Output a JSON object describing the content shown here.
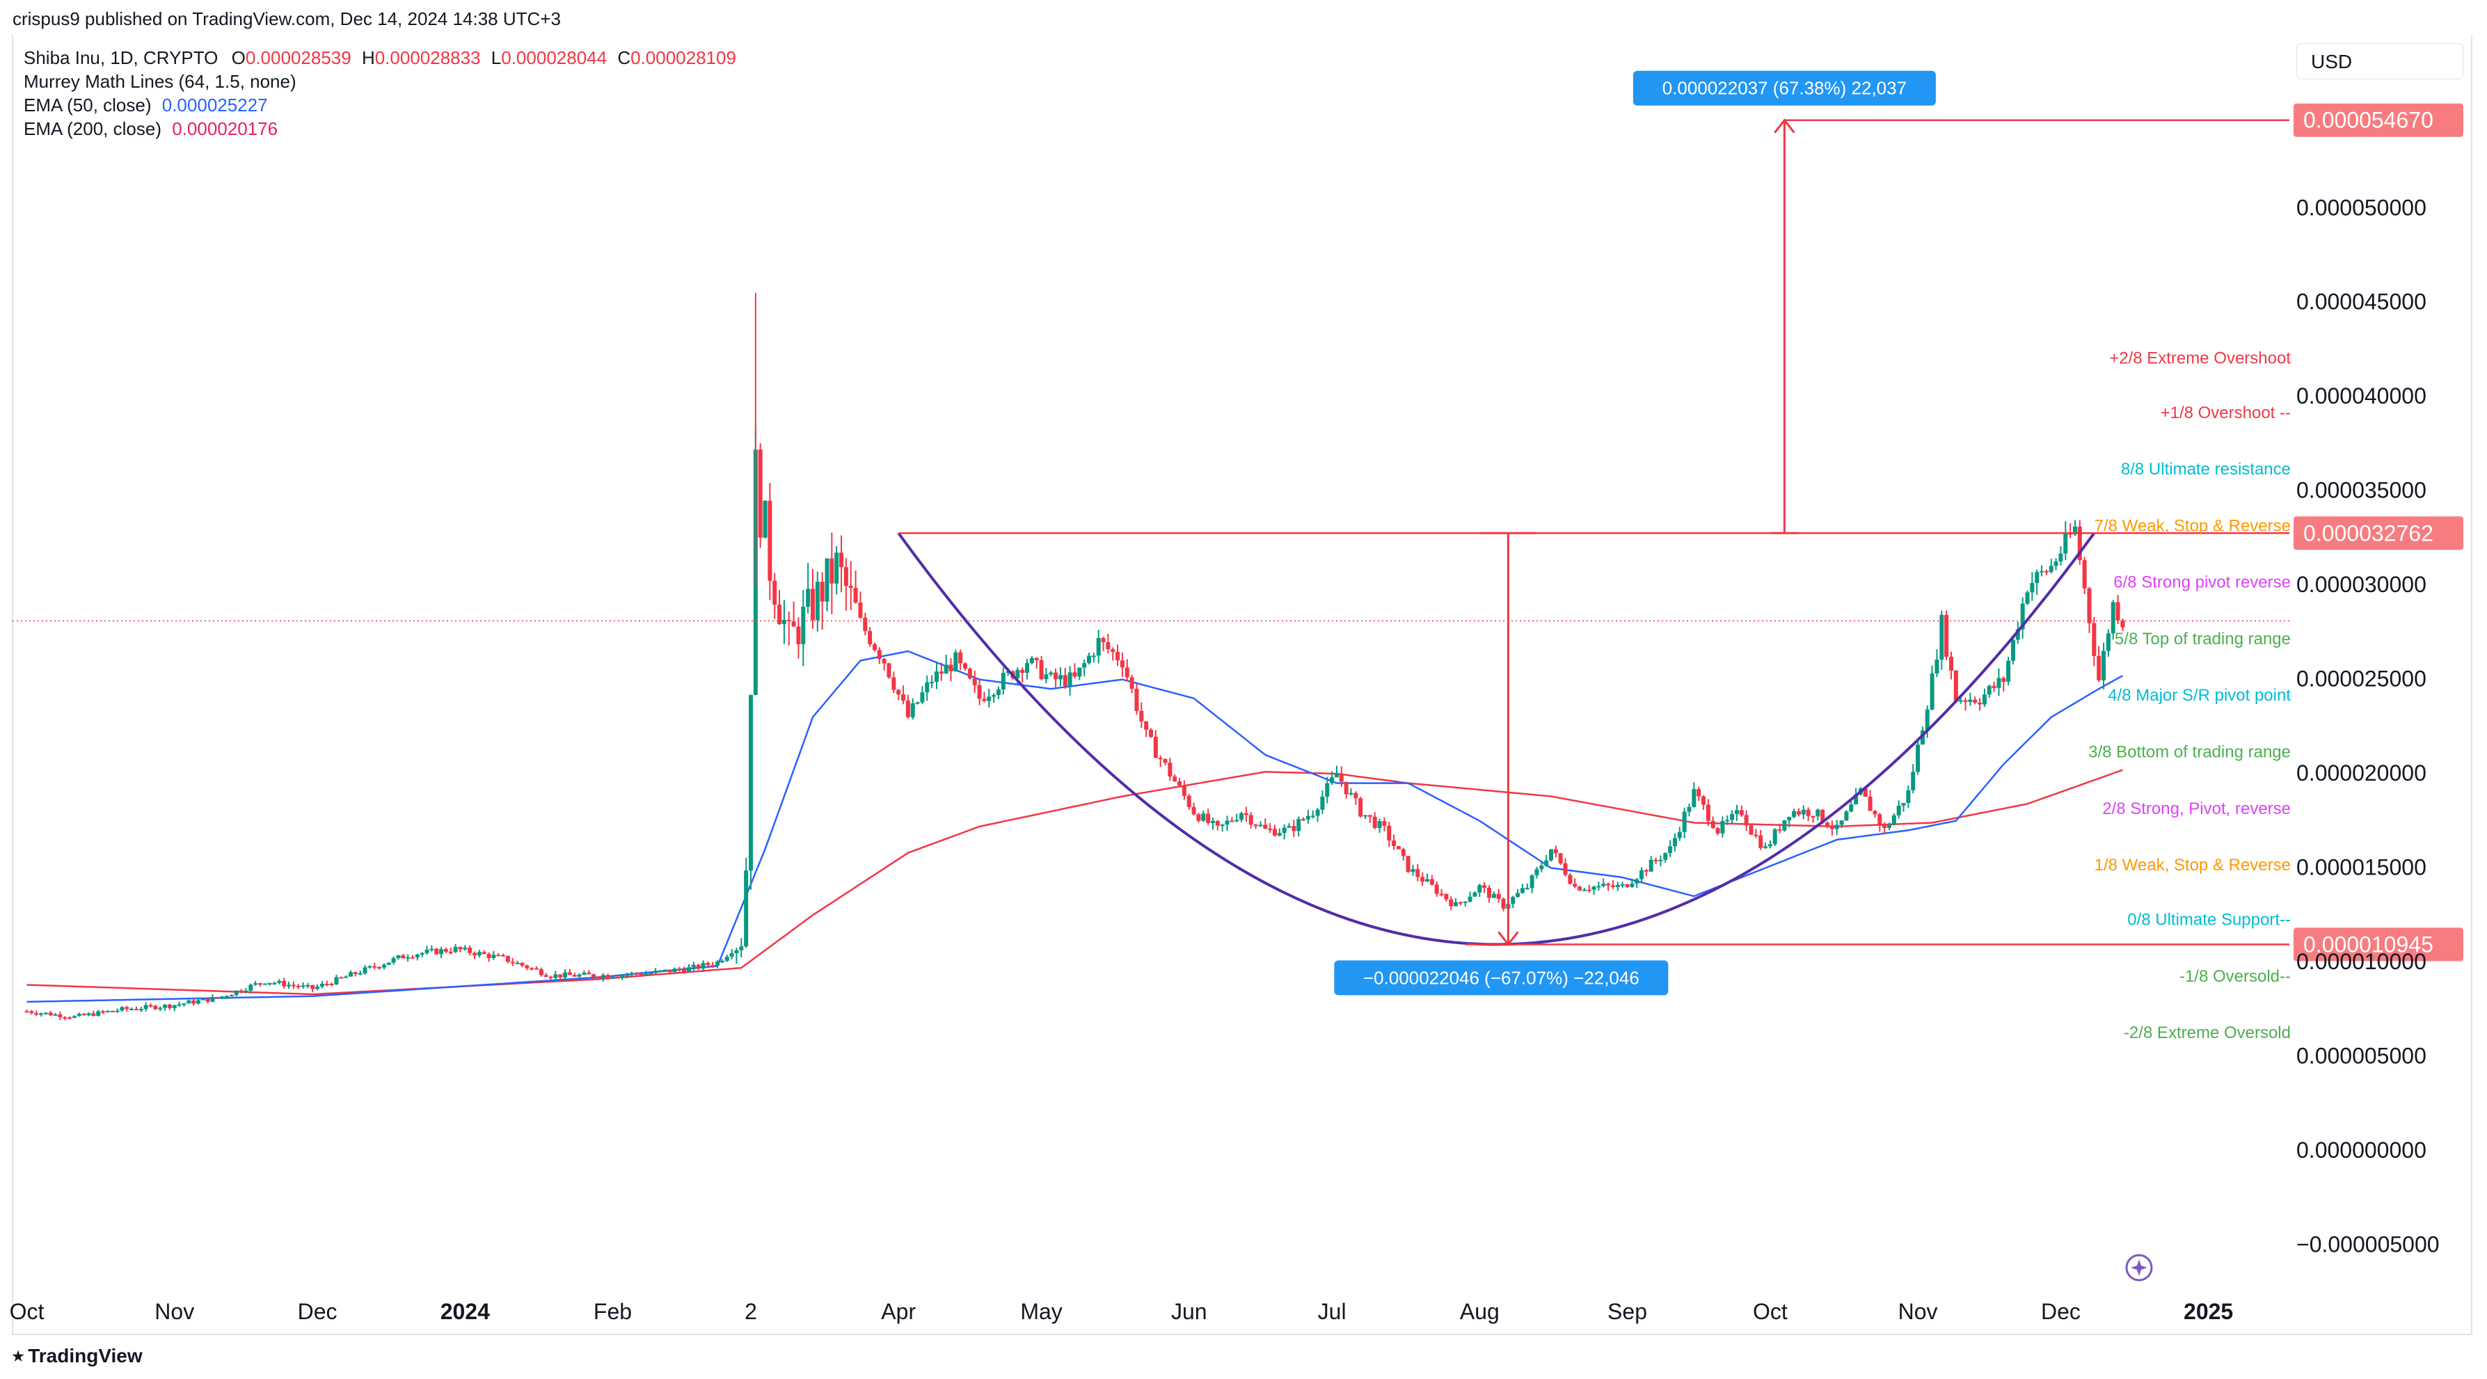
{
  "header": {
    "published": "crispus9 published on TradingView.com, Dec 14, 2024 14:38 UTC+3"
  },
  "legend": {
    "symbol": "Shiba Inu, 1D, CRYPTO",
    "o_label": "O",
    "o_value": "0.000028539",
    "h_label": "H",
    "h_value": "0.000028833",
    "l_label": "L",
    "l_value": "0.000028044",
    "c_label": "C",
    "c_value": "0.000028109",
    "murrey": "Murrey Math Lines (64, 1.5, none)",
    "ema50_label": "EMA (50, close)",
    "ema50_value": "0.000025227",
    "ema200_label": "EMA (200, close)",
    "ema200_value": "0.000020176"
  },
  "currency_button": "USD",
  "footer": {
    "brand": "TradingView"
  },
  "chart_data": {
    "type": "candlestick",
    "title": "Shiba Inu, 1D, CRYPTO",
    "xlabel": "",
    "ylabel": "",
    "ylim": [
      -6.5e-06,
      5.92e-05
    ],
    "y_ticks": [
      "0.000050000",
      "0.000045000",
      "0.000040000",
      "0.000035000",
      "0.000030000",
      "0.000025000",
      "0.000020000",
      "0.000015000",
      "0.000010000",
      "0.000005000",
      "0.000000000",
      "−0.000005000"
    ],
    "y_tick_values": [
      5e-05,
      4.5e-05,
      4e-05,
      3.5e-05,
      3e-05,
      2.5e-05,
      2e-05,
      1.5e-05,
      1e-05,
      5e-06,
      0,
      -5e-06
    ],
    "x_ticks": [
      "Oct",
      "Nov",
      "Dec",
      "2024",
      "Feb",
      "2",
      "Apr",
      "May",
      "Jun",
      "Jul",
      "Aug",
      "Sep",
      "Oct",
      "Nov",
      "Dec",
      "2025"
    ],
    "x_tick_days": [
      0,
      31,
      61,
      92,
      123,
      152,
      183,
      213,
      244,
      274,
      305,
      336,
      366,
      397,
      427,
      458
    ],
    "date_axis_start": "2023-10-01",
    "price_labels": [
      {
        "text": "0.000054670",
        "value": 5.467e-05,
        "color": "#f77c80"
      },
      {
        "text": "0.000032762",
        "value": 3.2762e-05,
        "color": "#f77c80"
      },
      {
        "text": "0.000010945",
        "value": 1.0945e-05,
        "color": "#f77c80"
      }
    ],
    "murrey_levels": [
      {
        "label": "+2/8 Extreme Overshoot",
        "value": 4.21e-05,
        "color": "#f23645"
      },
      {
        "label": "+1/8 Overshoot --",
        "value": 3.92e-05,
        "color": "#f23645"
      },
      {
        "label": "8/8 Ultimate resistance",
        "value": 3.62e-05,
        "color": "#00bcd4"
      },
      {
        "label": "7/8 Weak, Stop & Reverse",
        "value": 3.32e-05,
        "color": "#ff9800"
      },
      {
        "label": "6/8 Strong pivot reverse",
        "value": 3.02e-05,
        "color": "#e040fb"
      },
      {
        "label": "5/8 Top of trading range",
        "value": 2.72e-05,
        "color": "#4caf50"
      },
      {
        "label": "4/8 Major S/R pivot point",
        "value": 2.42e-05,
        "color": "#00bcd4"
      },
      {
        "label": "3/8 Bottom of trading range",
        "value": 2.12e-05,
        "color": "#4caf50"
      },
      {
        "label": "2/8 Strong, Pivot, reverse",
        "value": 1.82e-05,
        "color": "#e040fb"
      },
      {
        "label": "1/8 Weak, Stop & Reverse",
        "value": 1.52e-05,
        "color": "#ff9800"
      },
      {
        "label": "0/8 Ultimate Support--",
        "value": 1.23e-05,
        "color": "#00bcd4"
      },
      {
        "label": "-1/8 Oversold--",
        "value": 9.3e-06,
        "color": "#4caf50"
      },
      {
        "label": "-2/8 Extreme Oversold",
        "value": 6.3e-06,
        "color": "#4caf50"
      }
    ],
    "measure_down": {
      "text": "−0.000022046 (−67.07%) −22,046",
      "from": 3.2762e-05,
      "to": 1.0945e-05
    },
    "measure_up": {
      "text": "0.000022037 (67.38%) 22,037",
      "from": 3.2762e-05,
      "to": 5.467e-05
    },
    "last_price": 2.8109e-05,
    "close_series": {
      "days": [
        0,
        10,
        20,
        30,
        40,
        50,
        60,
        70,
        80,
        90,
        100,
        110,
        120,
        130,
        140,
        145,
        150,
        151,
        152,
        153,
        154,
        155,
        156,
        158,
        160,
        165,
        170,
        175,
        180,
        185,
        190,
        195,
        200,
        205,
        210,
        215,
        220,
        225,
        230,
        235,
        240,
        245,
        250,
        255,
        260,
        265,
        270,
        275,
        280,
        285,
        290,
        295,
        300,
        305,
        310,
        315,
        320,
        325,
        330,
        335,
        340,
        345,
        350,
        355,
        360,
        362,
        365,
        370,
        375,
        380,
        385,
        390,
        395,
        400,
        402,
        405,
        410,
        415,
        420,
        425,
        430,
        435,
        438,
        440
      ],
      "close": [
        7.4e-06,
        7.1e-06,
        7.5e-06,
        7.7e-06,
        8.1e-06,
        9e-06,
        8.6e-06,
        9.5e-06,
        1.04e-05,
        1.07e-05,
        1.02e-05,
        9.3e-06,
        9.3e-06,
        9.4e-06,
        9.7e-06,
        1e-05,
        1.11e-05,
        1.5e-05,
        2.5e-05,
        3.6e-05,
        3.4e-05,
        3.3e-05,
        3.1e-05,
        2.9e-05,
        2.7e-05,
        2.9e-05,
        3.1e-05,
        2.8e-05,
        2.6e-05,
        2.3e-05,
        2.5e-05,
        2.6e-05,
        2.4e-05,
        2.5e-05,
        2.6e-05,
        2.5e-05,
        2.5e-05,
        2.7e-05,
        2.6e-05,
        2.2e-05,
        2e-05,
        1.8e-05,
        1.7e-05,
        1.8e-05,
        1.7e-05,
        1.7e-05,
        1.8e-05,
        2e-05,
        1.8e-05,
        1.7e-05,
        1.5e-05,
        1.4e-05,
        1.3e-05,
        1.4e-05,
        1.3e-05,
        1.4e-05,
        1.6e-05,
        1.4e-05,
        1.4e-05,
        1.4e-05,
        1.5e-05,
        1.6e-05,
        1.9e-05,
        1.7e-05,
        1.8e-05,
        1.7e-05,
        1.6e-05,
        1.8e-05,
        1.8e-05,
        1.7e-05,
        1.9e-05,
        1.7e-05,
        1.9e-05,
        2.5e-05,
        2.8e-05,
        2.4e-05,
        2.4e-05,
        2.5e-05,
        3e-05,
        3.1e-05,
        3.3e-05,
        2.5e-05,
        2.9e-05,
        2.81e-05
      ]
    },
    "ema50": {
      "days": [
        0,
        60,
        120,
        145,
        155,
        165,
        175,
        185,
        200,
        215,
        230,
        245,
        260,
        275,
        290,
        305,
        320,
        335,
        350,
        365,
        380,
        395,
        405,
        415,
        425,
        435,
        440
      ],
      "values": [
        7.9e-06,
        8.2e-06,
        9.2e-06,
        9.8e-06,
        1.6e-05,
        2.3e-05,
        2.6e-05,
        2.65e-05,
        2.5e-05,
        2.45e-05,
        2.5e-05,
        2.4e-05,
        2.1e-05,
        1.95e-05,
        1.95e-05,
        1.75e-05,
        1.5e-05,
        1.45e-05,
        1.35e-05,
        1.5e-05,
        1.65e-05,
        1.7e-05,
        1.75e-05,
        2.05e-05,
        2.3e-05,
        2.45e-05,
        2.52e-05
      ]
    },
    "ema200": {
      "days": [
        0,
        60,
        120,
        150,
        165,
        185,
        200,
        230,
        260,
        275,
        290,
        320,
        350,
        380,
        400,
        420,
        440
      ],
      "values": [
        8.8e-06,
        8.3e-06,
        9.1e-06,
        9.7e-06,
        1.25e-05,
        1.58e-05,
        1.72e-05,
        1.88e-05,
        2.01e-05,
        2e-05,
        1.95e-05,
        1.88e-05,
        1.74e-05,
        1.72e-05,
        1.74e-05,
        1.84e-05,
        2.02e-05
      ]
    },
    "cup_curve": {
      "from_day": 183,
      "to_day": 434,
      "left": 3.2762e-05,
      "bottom": 1.0945e-05,
      "right": 3.2762e-05,
      "color": "#512da8"
    }
  }
}
